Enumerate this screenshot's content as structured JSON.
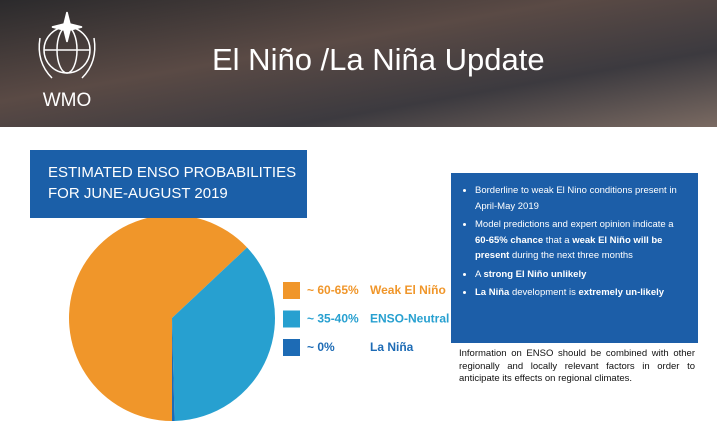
{
  "header": {
    "logo_text": "WMO",
    "title": "El Niño /La Niña Update"
  },
  "chart_data": {
    "type": "pie",
    "title": [
      "ESTIMATED ENSO PROBABILITIES",
      "FOR JUNE-AUGUST 2019"
    ],
    "categories": [
      "Weak El Niño",
      "ENSO-Neutral",
      "La Niña"
    ],
    "values": [
      63,
      36.6,
      0.4
    ],
    "value_labels": [
      "~ 60-65%",
      "~ 35-40%",
      "~ 0%"
    ],
    "colors": [
      "#f0962a",
      "#27a0d0",
      "#1d6bb5"
    ],
    "start_angle": 180
  },
  "summary": {
    "bullets": [
      [
        {
          "text": "Borderline to weak El Nino conditions present in April-May 2019",
          "bold": false
        }
      ],
      [
        {
          "text": "Model predictions and expert opinion indicate a ",
          "bold": false
        },
        {
          "text": "60-65% chance",
          "bold": true
        },
        {
          "text": " that a ",
          "bold": false
        },
        {
          "text": "weak El Niño will be present",
          "bold": true
        },
        {
          "text": " during the next three months",
          "bold": false
        }
      ],
      [
        {
          "text": "A ",
          "bold": false
        },
        {
          "text": "strong El Niño unlikely",
          "bold": true
        }
      ],
      [
        {
          "text": "La Niña",
          "bold": true
        },
        {
          "text": " development is ",
          "bold": false
        },
        {
          "text": "extremely un-likely",
          "bold": true
        }
      ]
    ]
  },
  "note": "Information on ENSO should be combined with other regionally and locally relevant factors in order to anticipate its effects on regional climates."
}
